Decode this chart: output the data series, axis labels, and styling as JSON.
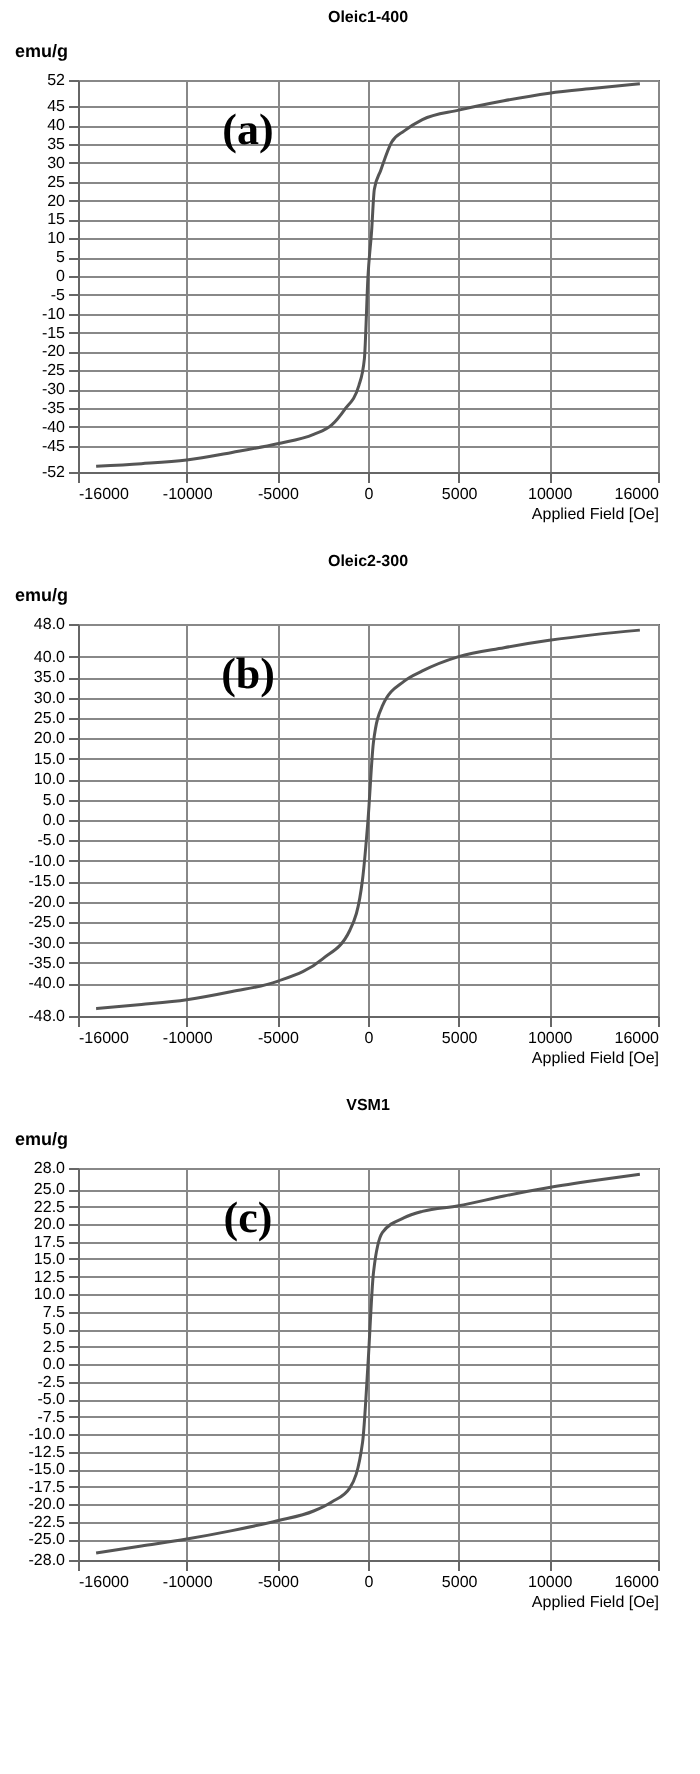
{
  "chart_data": [
    {
      "type": "line",
      "title": "Oleic1-400",
      "xlabel": "Applied Field [Oe]",
      "ylabel": "emu/g",
      "annotations": [
        "(a)"
      ],
      "color": "#555555",
      "grid": true,
      "x": [
        -15000,
        -12500,
        -10000,
        -7500,
        -5000,
        -3000,
        -2000,
        -1300,
        -500,
        -200,
        0,
        200,
        350,
        700,
        1300,
        2000,
        3000,
        5000,
        7500,
        10000,
        12500,
        15000
      ],
      "values": [
        -50.5,
        -49.8,
        -48.8,
        -46.8,
        -44.5,
        -42,
        -39.5,
        -35.5,
        -29,
        -22,
        0,
        12,
        23,
        28,
        35.5,
        38.5,
        41.5,
        44,
        46.5,
        48.5,
        49.8,
        51
      ],
      "xlim": [
        -16000,
        16000
      ],
      "xticks": [
        -16000,
        -10000,
        -5000,
        0,
        5000,
        10000,
        16000
      ],
      "ylim": [
        -52,
        52
      ],
      "yticks": [
        -52,
        -45,
        -40,
        -35,
        -30,
        -25,
        -20,
        -15,
        -10,
        -5,
        0,
        5,
        10,
        15,
        20,
        25,
        30,
        35,
        40,
        45,
        52
      ]
    },
    {
      "type": "line",
      "title": "Oleic2-300",
      "xlabel": "Applied Field [Oe]",
      "ylabel": "emu/g",
      "annotations": [
        "(b)"
      ],
      "color": "#555555",
      "grid": true,
      "x": [
        -15000,
        -12500,
        -10000,
        -7500,
        -5000,
        -2500,
        -1000,
        -300,
        0,
        300,
        800,
        2000,
        3000,
        5000,
        7500,
        10000,
        12500,
        15000
      ],
      "values": [
        -46.2,
        -45.2,
        -44,
        -42,
        -39.5,
        -34,
        -27,
        -14.5,
        0,
        19,
        28,
        34,
        36.5,
        40,
        42.2,
        44,
        45.4,
        46.5
      ],
      "xlim": [
        -16000,
        16000
      ],
      "xticks": [
        -16000,
        -10000,
        -5000,
        0,
        5000,
        10000,
        16000
      ],
      "ylim": [
        -48,
        48
      ],
      "yticks": [
        {
          "value": -48,
          "label": "-48.0"
        },
        {
          "value": -40,
          "label": "-40.0"
        },
        {
          "value": -35,
          "label": "-35.0"
        },
        {
          "value": -30,
          "label": "-30.0"
        },
        {
          "value": -25,
          "label": "-25.0"
        },
        {
          "value": -20,
          "label": "-20.0"
        },
        {
          "value": -15,
          "label": "-15.0"
        },
        {
          "value": -10,
          "label": "-10.0"
        },
        {
          "value": -5,
          "label": "-5.0"
        },
        {
          "value": 0,
          "label": "0.0"
        },
        {
          "value": 5,
          "label": "5.0"
        },
        {
          "value": 10,
          "label": "10.0"
        },
        {
          "value": 15,
          "label": "15.0"
        },
        {
          "value": 20,
          "label": "20.0"
        },
        {
          "value": 25,
          "label": "25.0"
        },
        {
          "value": 30,
          "label": "30.0"
        },
        {
          "value": 35,
          "label": "35.0"
        },
        {
          "value": 40,
          "label": "40.0"
        },
        {
          "value": 48,
          "label": "48.0"
        }
      ]
    },
    {
      "type": "line",
      "title": "VSM1",
      "xlabel": "Applied Field [Oe]",
      "ylabel": "emu/g",
      "annotations": [
        "(c)"
      ],
      "color": "#555555",
      "grid": true,
      "x": [
        -15000,
        -12500,
        -10000,
        -7500,
        -5000,
        -3000,
        -2000,
        -1000,
        -300,
        0,
        300,
        800,
        2000,
        3000,
        5000,
        7500,
        10000,
        12500,
        15000
      ],
      "values": [
        -27,
        -26,
        -25,
        -23.8,
        -22.4,
        -21,
        -19.7,
        -17.7,
        -11.2,
        0,
        13,
        18.8,
        20.9,
        21.8,
        22.6,
        24,
        25.2,
        26.2,
        27.1
      ],
      "xlim": [
        -16000,
        16000
      ],
      "xticks": [
        -16000,
        -10000,
        -5000,
        0,
        5000,
        10000,
        16000
      ],
      "ylim": [
        -28,
        28
      ],
      "yticks": [
        {
          "value": -28,
          "label": "-28.0"
        },
        {
          "value": -25,
          "label": "-25.0"
        },
        {
          "value": -22.5,
          "label": "-22.5"
        },
        {
          "value": -20,
          "label": "-20.0"
        },
        {
          "value": -17.5,
          "label": "-17.5"
        },
        {
          "value": -15,
          "label": "-15.0"
        },
        {
          "value": -12.5,
          "label": "-12.5"
        },
        {
          "value": -10,
          "label": "-10.0"
        },
        {
          "value": -7.5,
          "label": "-7.5"
        },
        {
          "value": -5,
          "label": "-5.0"
        },
        {
          "value": -2.5,
          "label": "-2.5"
        },
        {
          "value": 0,
          "label": "0.0"
        },
        {
          "value": 2.5,
          "label": "2.5"
        },
        {
          "value": 5,
          "label": "5.0"
        },
        {
          "value": 7.5,
          "label": "7.5"
        },
        {
          "value": 10,
          "label": "10.0"
        },
        {
          "value": 12.5,
          "label": "12.5"
        },
        {
          "value": 15,
          "label": "15.0"
        },
        {
          "value": 17.5,
          "label": "17.5"
        },
        {
          "value": 20,
          "label": "20.0"
        },
        {
          "value": 22.5,
          "label": "22.5"
        },
        {
          "value": 25,
          "label": "25.0"
        },
        {
          "value": 28,
          "label": "28.0"
        }
      ]
    }
  ]
}
